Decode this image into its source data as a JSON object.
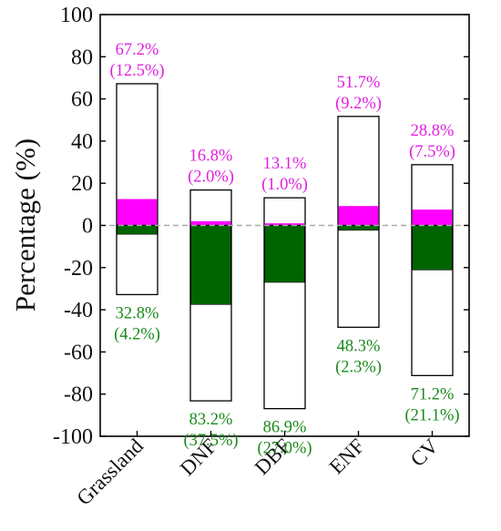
{
  "chart_data": {
    "type": "bar",
    "title": "",
    "xlabel": "",
    "ylabel": "Percentage (%)",
    "ylim": [
      -100,
      100
    ],
    "yticks": [
      100,
      80,
      60,
      40,
      20,
      0,
      -20,
      -40,
      -60,
      -80,
      -100
    ],
    "ytick_labels": [
      "100",
      "80",
      "60",
      "40",
      "20",
      "0",
      "-20",
      "-40",
      "-60",
      "-80",
      "-100"
    ],
    "grid": false,
    "zero_line": "dashed",
    "categories": [
      "Grassland",
      "DNF",
      "DBF",
      "ENF",
      "CV"
    ],
    "series": [
      {
        "role": "positive-total",
        "values": [
          67.2,
          16.8,
          13.1,
          51.7,
          28.8
        ],
        "color": "#ffffff",
        "edge": "#000000"
      },
      {
        "role": "positive-inner",
        "values": [
          12.5,
          2.0,
          1.0,
          9.2,
          7.5
        ],
        "color": "#ff00ff"
      },
      {
        "role": "negative-total",
        "values": [
          -32.8,
          -83.2,
          -86.9,
          -48.3,
          -71.2
        ],
        "color": "#ffffff",
        "edge": "#000000"
      },
      {
        "role": "negative-inner",
        "values": [
          -4.2,
          -37.5,
          -27.0,
          -2.3,
          -21.1
        ],
        "color": "#006400"
      }
    ],
    "annotations_positive": [
      {
        "line1": "67.2%",
        "line2": "(12.5%)"
      },
      {
        "line1": "16.8%",
        "line2": "(2.0%)"
      },
      {
        "line1": "13.1%",
        "line2": "(1.0%)"
      },
      {
        "line1": "51.7%",
        "line2": "(9.2%)"
      },
      {
        "line1": "28.8%",
        "line2": "(7.5%)"
      }
    ],
    "annotations_negative": [
      {
        "line1": "32.8%",
        "line2": "(4.2%)"
      },
      {
        "line1": "83.2%",
        "line2": "(37.5%)"
      },
      {
        "line1": "86.9%",
        "line2": "(27.0%)"
      },
      {
        "line1": "48.3%",
        "line2": "(2.3%)"
      },
      {
        "line1": "71.2%",
        "line2": "(21.1%)"
      }
    ],
    "colors": {
      "positive_text": "#e020e0",
      "negative_text": "#1a8a1a",
      "zero_line": "#aaaaaa"
    }
  }
}
